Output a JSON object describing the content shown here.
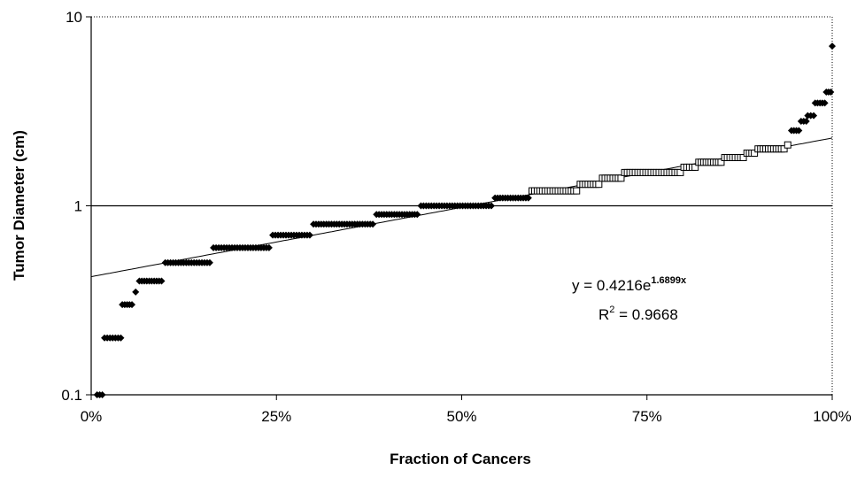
{
  "chart_data": {
    "type": "scatter",
    "title": "",
    "xlabel": "Fraction of Cancers",
    "ylabel": "Tumor Diameter (cm)",
    "xlim": [
      0,
      1
    ],
    "ylim": [
      0.1,
      10
    ],
    "yscale": "log",
    "grid": false,
    "x_ticks": [
      0,
      0.25,
      0.5,
      0.75,
      1
    ],
    "x_tick_labels": [
      "0%",
      "25%",
      "50%",
      "75%",
      "100%"
    ],
    "y_ticks": [
      0.1,
      1,
      10
    ],
    "y_tick_labels": [
      "0.1",
      "1",
      "10"
    ],
    "reference_line_y": 1,
    "colors": {
      "marker": "#000000",
      "axis": "#000000",
      "line": "#000000"
    },
    "series": [
      {
        "marker": "diamond-filled",
        "segments": [
          {
            "x0": 0.008,
            "x1": 0.015,
            "y": 0.1
          },
          {
            "x0": 0.018,
            "x1": 0.04,
            "y": 0.2
          },
          {
            "x0": 0.042,
            "x1": 0.055,
            "y": 0.3
          },
          {
            "x0": 0.06,
            "x1": 0.06,
            "y": 0.35
          },
          {
            "x0": 0.065,
            "x1": 0.095,
            "y": 0.4
          },
          {
            "x0": 0.1,
            "x1": 0.16,
            "y": 0.5
          },
          {
            "x0": 0.165,
            "x1": 0.24,
            "y": 0.6
          },
          {
            "x0": 0.245,
            "x1": 0.295,
            "y": 0.7
          },
          {
            "x0": 0.3,
            "x1": 0.38,
            "y": 0.8
          },
          {
            "x0": 0.385,
            "x1": 0.44,
            "y": 0.9
          },
          {
            "x0": 0.445,
            "x1": 0.54,
            "y": 1.0
          },
          {
            "x0": 0.545,
            "x1": 0.59,
            "y": 1.1
          },
          {
            "x0": 0.945,
            "x1": 0.955,
            "y": 2.5
          },
          {
            "x0": 0.958,
            "x1": 0.965,
            "y": 2.8
          },
          {
            "x0": 0.967,
            "x1": 0.975,
            "y": 3.0
          },
          {
            "x0": 0.977,
            "x1": 0.99,
            "y": 3.5
          },
          {
            "x0": 0.992,
            "x1": 0.998,
            "y": 4.0
          },
          {
            "x0": 1.0,
            "x1": 1.0,
            "y": 7.0
          }
        ]
      },
      {
        "marker": "square-open",
        "segments": [
          {
            "x0": 0.595,
            "x1": 0.655,
            "y": 1.2
          },
          {
            "x0": 0.66,
            "x1": 0.685,
            "y": 1.3
          },
          {
            "x0": 0.69,
            "x1": 0.715,
            "y": 1.4
          },
          {
            "x0": 0.72,
            "x1": 0.795,
            "y": 1.5
          },
          {
            "x0": 0.8,
            "x1": 0.815,
            "y": 1.6
          },
          {
            "x0": 0.82,
            "x1": 0.85,
            "y": 1.7
          },
          {
            "x0": 0.855,
            "x1": 0.88,
            "y": 1.8
          },
          {
            "x0": 0.885,
            "x1": 0.895,
            "y": 1.9
          },
          {
            "x0": 0.9,
            "x1": 0.935,
            "y": 2.0
          },
          {
            "x0": 0.94,
            "x1": 0.94,
            "y": 2.1
          }
        ]
      }
    ],
    "trendline": {
      "type": "exponential",
      "a": 0.4216,
      "b": 1.6899
    },
    "annotations": {
      "equation_prefix": "y = 0.4216e",
      "equation_exponent": "1.6899x",
      "r2_prefix": "R",
      "r2_sup": "2",
      "r2_value": " = 0.9668"
    }
  }
}
